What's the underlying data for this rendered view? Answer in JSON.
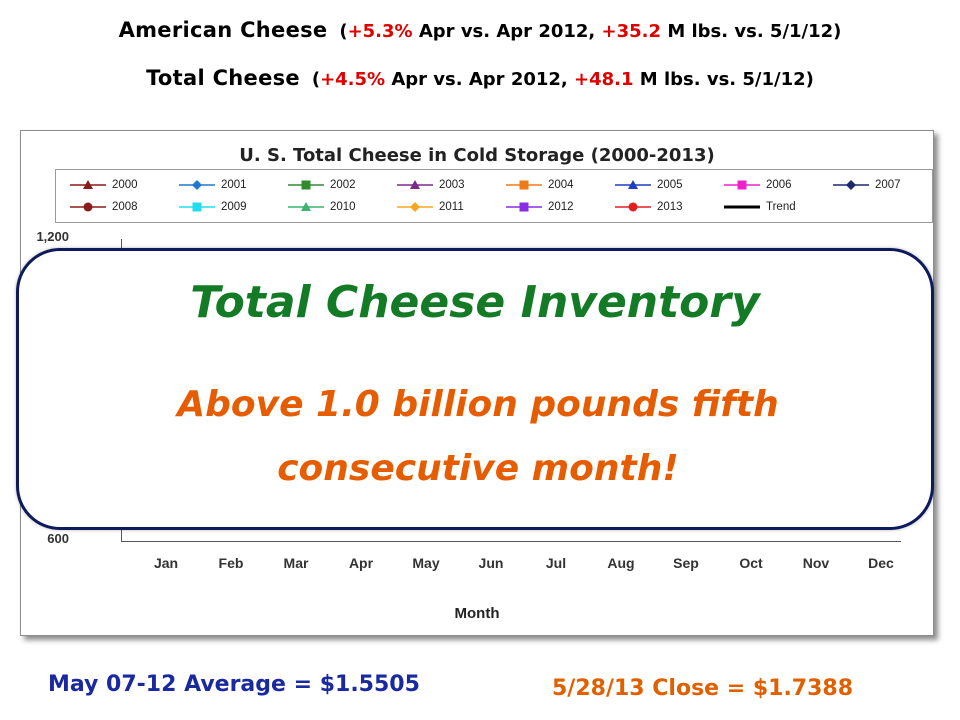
{
  "headlines": {
    "american": {
      "label": "American Cheese",
      "open": "(",
      "pct": "+5.3%",
      "mid": " Apr vs. Apr 2012, ",
      "delta": "+35.2",
      "tail": " M lbs. vs. 5/1/12",
      "close": ")"
    },
    "total": {
      "label": "Total Cheese",
      "open": "(",
      "pct": "+4.5%",
      "mid": " Apr vs. Apr 2012, ",
      "delta": "+48.1",
      "tail": " M lbs. vs. 5/1/12",
      "close": ")"
    }
  },
  "colors": {
    "headline_red": "#e00000",
    "headline_green": "#1f7a1f",
    "overlay_border": "#0d1a5c",
    "overlay_title": "#137a25",
    "overlay_sub": "#e65c00",
    "footer_left": "#1a2a9e",
    "footer_right": "#e06000"
  },
  "chart_data": {
    "type": "line",
    "title": "U. S. Total Cheese in Cold Storage (2000-2013)",
    "xlabel": "Month",
    "ylabel": "",
    "categories": [
      "Jan",
      "Feb",
      "Mar",
      "Apr",
      "May",
      "Jun",
      "Jul",
      "Aug",
      "Sep",
      "Oct",
      "Nov",
      "Dec"
    ],
    "y_ticks_visible": [
      "1,200",
      "600"
    ],
    "ylim": [
      600,
      1200
    ],
    "legend_position": "top",
    "legend": [
      {
        "name": "2000",
        "color": "#8b1a1a",
        "marker": "triangle"
      },
      {
        "name": "2001",
        "color": "#1f78d1",
        "marker": "diamond"
      },
      {
        "name": "2002",
        "color": "#2e8b2e",
        "marker": "square"
      },
      {
        "name": "2003",
        "color": "#7b2a8c",
        "marker": "triangle"
      },
      {
        "name": "2004",
        "color": "#f07a18",
        "marker": "square"
      },
      {
        "name": "2005",
        "color": "#1f3fbf",
        "marker": "triangle"
      },
      {
        "name": "2006",
        "color": "#ee22cc",
        "marker": "square"
      },
      {
        "name": "2007",
        "color": "#1a2a6e",
        "marker": "diamond"
      },
      {
        "name": "2008",
        "color": "#8b1a1a",
        "marker": "circle"
      },
      {
        "name": "2009",
        "color": "#22ddee",
        "marker": "square"
      },
      {
        "name": "2010",
        "color": "#3cb371",
        "marker": "triangle"
      },
      {
        "name": "2011",
        "color": "#f5a623",
        "marker": "diamond"
      },
      {
        "name": "2012",
        "color": "#8a2be2",
        "marker": "square"
      },
      {
        "name": "2013",
        "color": "#e02020",
        "marker": "circle"
      },
      {
        "name": "Trend",
        "color": "#000000",
        "marker": "none"
      }
    ],
    "series": []
  },
  "overlay": {
    "title": "Total Cheese Inventory",
    "subtitle_line1": "Above 1.0 billion pounds fifth",
    "subtitle_line2": "consecutive month!"
  },
  "footer": {
    "left": "May 07-12 Average = $1.5505",
    "right": "5/28/13 Close = $1.7388"
  }
}
